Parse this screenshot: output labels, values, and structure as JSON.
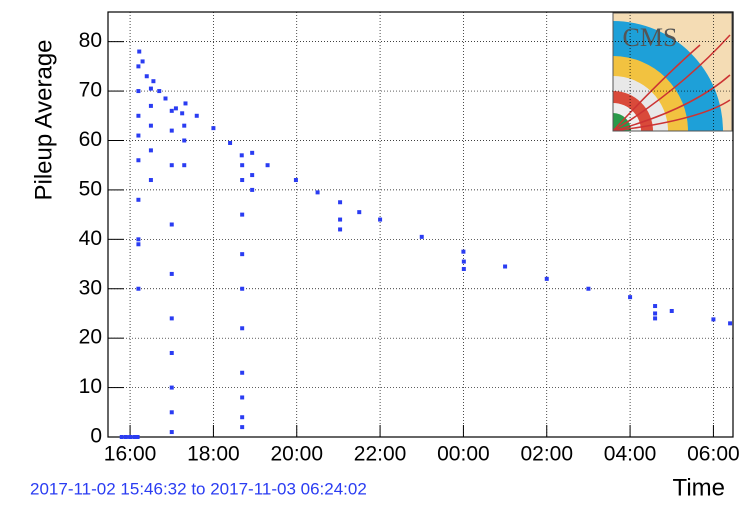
{
  "chart_data": {
    "type": "scatter",
    "y_label": "Pileup Average",
    "x_label": "Time",
    "annotation": "2017-11-02 15:46:32 to 2017-11-03 06:24:02",
    "logo_text": "CMS",
    "xlim": [
      15.47,
      30.47
    ],
    "ylim": [
      0,
      86
    ],
    "xticks": [
      {
        "value": 16,
        "label": "16:00"
      },
      {
        "value": 18,
        "label": "18:00"
      },
      {
        "value": 20,
        "label": "20:00"
      },
      {
        "value": 22,
        "label": "22:00"
      },
      {
        "value": 24,
        "label": "00:00"
      },
      {
        "value": 26,
        "label": "02:00"
      },
      {
        "value": 28,
        "label": "04:00"
      },
      {
        "value": 30,
        "label": "06:00"
      }
    ],
    "yticks": [
      0,
      10,
      20,
      30,
      40,
      50,
      60,
      70,
      80
    ],
    "grid": true,
    "series": [
      {
        "color": "#2a3cf2",
        "x": [
          15.8,
          15.9,
          16.0,
          16.1,
          16.18,
          16.2,
          16.2,
          16.2,
          16.2,
          16.2,
          16.2,
          16.2,
          16.2,
          16.2,
          16.22,
          16.3,
          16.4,
          16.5,
          16.5,
          16.5,
          16.5,
          16.5,
          16.56,
          16.7,
          16.85,
          17.0,
          17.0,
          17.0,
          17.0,
          17.0,
          17.0,
          17.0,
          17.0,
          17.0,
          17.0,
          17.1,
          17.25,
          17.3,
          17.3,
          17.3,
          17.33,
          17.6,
          18.0,
          18.4,
          18.68,
          18.69,
          18.69,
          18.69,
          18.69,
          18.69,
          18.69,
          18.69,
          18.69,
          18.69,
          18.69,
          18.93,
          18.93,
          18.93,
          19.3,
          19.98,
          20.5,
          21.04,
          21.04,
          21.04,
          21.5,
          22.0,
          23.0,
          24.0,
          24.01,
          24.01,
          25.0,
          26.0,
          27.0,
          28.0,
          28.6,
          28.6,
          28.6,
          29.0,
          30.0,
          30.4
        ],
        "values": [
          0,
          0,
          0,
          0,
          0,
          30,
          39,
          40,
          48,
          56,
          61,
          65,
          70,
          75,
          78,
          76,
          73,
          70.5,
          52,
          58,
          63,
          67,
          72,
          70,
          68.5,
          1,
          5,
          10,
          17,
          24,
          33,
          43,
          55,
          62,
          66,
          66.5,
          65.5,
          55,
          60,
          63,
          67.5,
          65,
          62.5,
          59.5,
          57,
          2,
          4,
          8,
          13,
          22,
          30,
          37,
          45,
          52,
          55,
          57.5,
          50,
          53,
          55,
          52,
          49.5,
          47.5,
          42,
          44,
          45.5,
          44,
          40.5,
          37.5,
          34,
          35.5,
          34.5,
          32,
          30,
          28.3,
          26.5,
          24,
          25,
          25.5,
          23.8,
          23
        ]
      }
    ]
  }
}
